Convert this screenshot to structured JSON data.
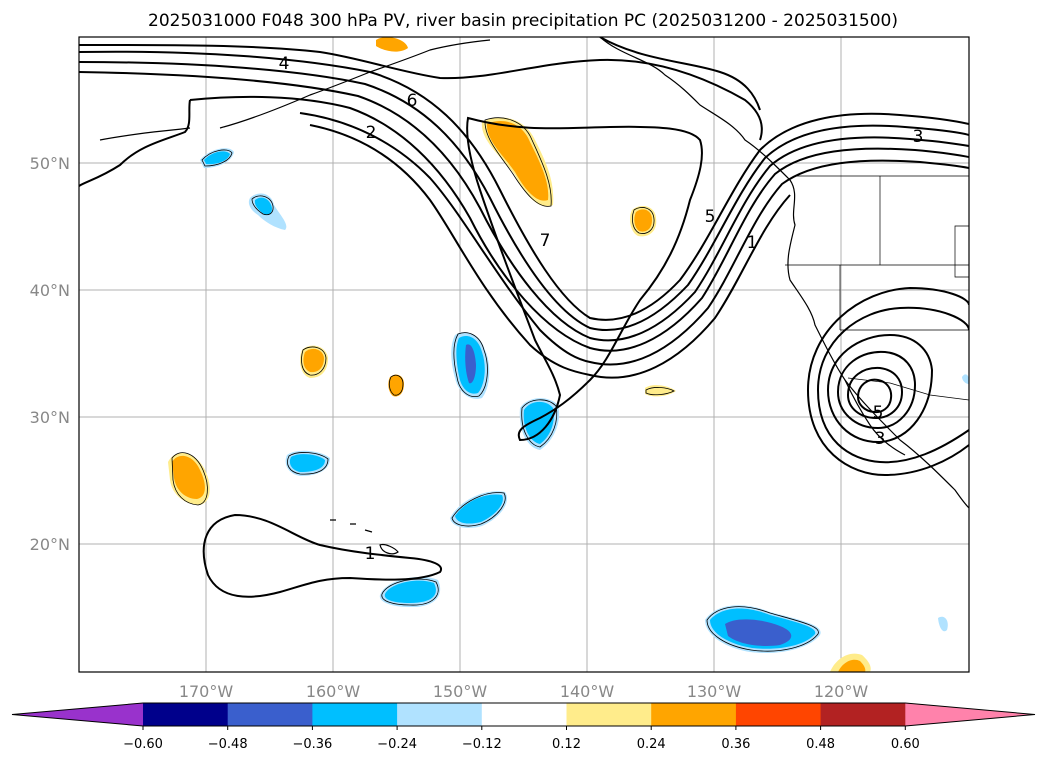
{
  "title": "2025031000 F048 300 hPa PV, river basin precipitation PC (2025031200 - 2025031500)",
  "map": {
    "projection": "equirectangular",
    "lon_range": [
      -180,
      -110
    ],
    "lat_range": [
      10,
      60
    ],
    "gridlines": true,
    "lat_ticks": [
      "50°N",
      "40°N",
      "30°N",
      "20°N"
    ],
    "lon_ticks": [
      "170°W",
      "160°W",
      "150°W",
      "140°W",
      "130°W",
      "120°W"
    ],
    "pv_contour_labels": [
      "4",
      "6",
      "2",
      "7",
      "5",
      "1",
      "3",
      "5",
      "3",
      "1"
    ]
  },
  "colorbar": {
    "ticks": [
      "−0.60",
      "−0.48",
      "−0.36",
      "−0.24",
      "−0.12",
      "0.12",
      "0.24",
      "0.36",
      "0.48",
      "0.60"
    ],
    "colors": [
      "#9932cc",
      "#00008b",
      "#3a5fcd",
      "#00bfff",
      "#b0e2ff",
      "#ffffff",
      "#ffec8b",
      "#ffa500",
      "#ff4500",
      "#b22222",
      "#ff82ab"
    ]
  }
}
